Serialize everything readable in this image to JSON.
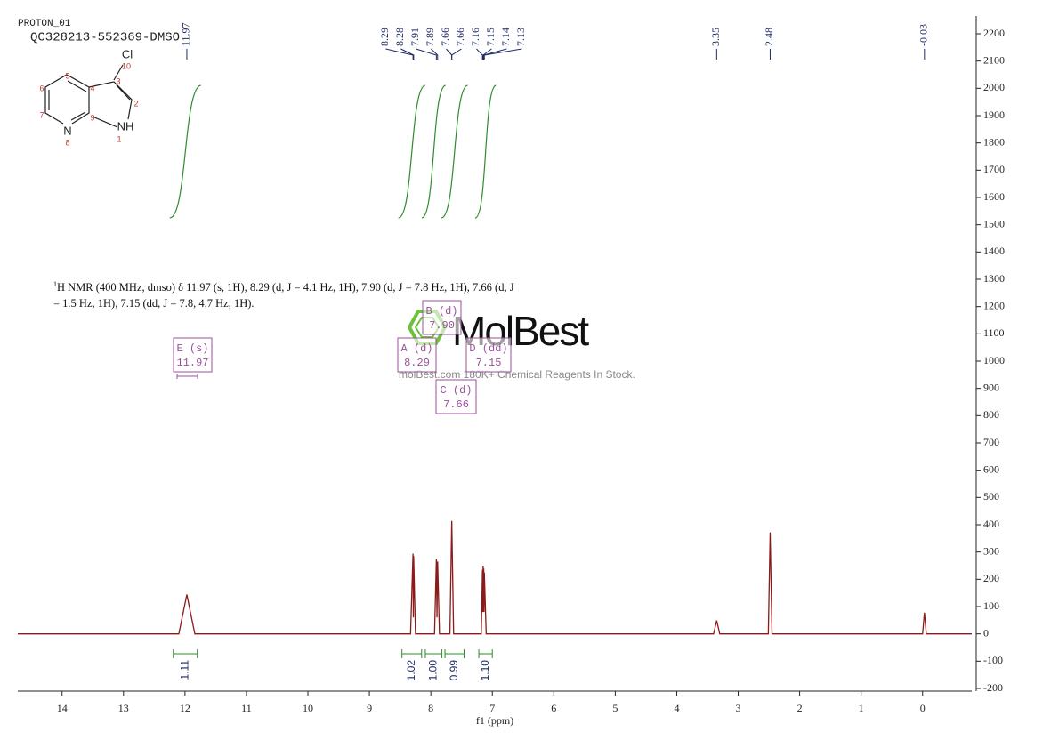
{
  "header": {
    "title": "PROTON_01",
    "sample": "QC328213-552369-DMSO"
  },
  "structure": {
    "atoms": [
      "Cl",
      "10",
      "3",
      "2",
      "4",
      "5",
      "6",
      "7",
      "9",
      "N",
      "8",
      "NH",
      "1"
    ]
  },
  "watermark": {
    "brand": "MolBest",
    "tagline": "molBest.com 180K+ Chemical Reagents In Stock."
  },
  "chart_data": {
    "type": "line",
    "xlabel": "f1 (ppm)",
    "xlim": [
      14.72,
      -0.8
    ],
    "xticks": [
      14,
      13,
      12,
      11,
      10,
      9,
      8,
      7,
      6,
      5,
      4,
      3,
      2,
      1,
      0
    ],
    "ylim": [
      -200,
      2200
    ],
    "yticks": [
      -200,
      -100,
      0,
      100,
      200,
      300,
      400,
      500,
      600,
      700,
      800,
      900,
      1000,
      1100,
      1200,
      1300,
      1400,
      1500,
      1600,
      1700,
      1800,
      1900,
      2000,
      2100,
      2200
    ],
    "y_axis_side": "right",
    "annotation": {
      "sup": "1",
      "line1": "H NMR (400 MHz, dmso) δ 11.97 (s, 1H), 8.29 (d, J = 4.1 Hz, 1H), 7.90 (d, J = 7.8 Hz, 1H), 7.66 (d, J",
      "line2": "= 1.5 Hz, 1H), 7.15 (dd, J = 7.8, 4.7 Hz, 1H)."
    },
    "series": [
      {
        "color": "#8b1a1a",
        "x": [
          14.72,
          12.1,
          11.97,
          11.84,
          8.33,
          8.29,
          8.285,
          8.28,
          8.25,
          7.94,
          7.91,
          7.9,
          7.89,
          7.86,
          7.69,
          7.66,
          7.63,
          7.18,
          7.16,
          7.155,
          7.15,
          7.145,
          7.14,
          7.135,
          7.13,
          7.1,
          3.4,
          3.35,
          3.3,
          2.51,
          2.48,
          2.45,
          0,
          -0.03,
          -0.06,
          -0.8
        ],
        "values": [
          0,
          0,
          144,
          0,
          0,
          294,
          60,
          285,
          0,
          0,
          274,
          60,
          265,
          0,
          0,
          414,
          0,
          0,
          235,
          80,
          250,
          80,
          240,
          80,
          225,
          0,
          0,
          49,
          0,
          0,
          372,
          0,
          0,
          78,
          0,
          0
        ]
      }
    ],
    "peak_labels": [
      11.97,
      8.29,
      8.28,
      7.91,
      7.89,
      7.66,
      7.66,
      7.16,
      7.15,
      7.14,
      7.13,
      3.35,
      2.48,
      -0.03
    ],
    "multiplet_color": "#9b4f9b",
    "multiplets": [
      {
        "label": "E (s)",
        "shift": "11.97"
      },
      {
        "label": "A (d)",
        "shift": "8.29"
      },
      {
        "label": "B (d)",
        "shift": "7.90"
      },
      {
        "label": "C (d)",
        "shift": "7.66"
      },
      {
        "label": "D (dd)",
        "shift": "7.15"
      }
    ],
    "integrals": {
      "color": "#2e8b2e",
      "ranges": [
        [
          12.19,
          11.8
        ],
        [
          8.47,
          8.15
        ],
        [
          8.09,
          7.82
        ],
        [
          7.77,
          7.46
        ],
        [
          7.22,
          7.0
        ]
      ],
      "values": [
        1.11,
        1.02,
        1.0,
        0.99,
        1.1
      ],
      "value_labels": [
        "1.11",
        "1.02",
        "1.00",
        "0.99",
        "1.10"
      ]
    }
  }
}
